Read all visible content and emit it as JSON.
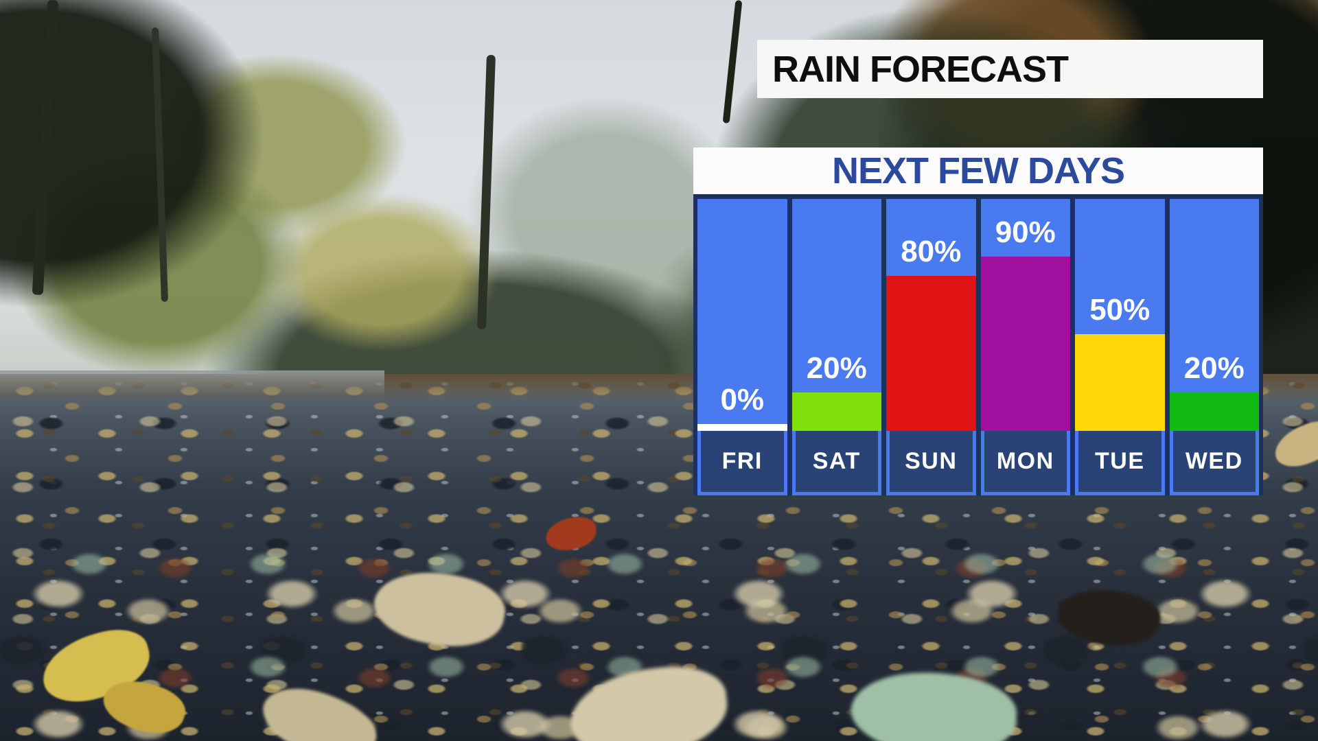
{
  "banner": {
    "title": "RAIN FORECAST"
  },
  "panel": {
    "title": "NEXT FEW DAYS"
  },
  "chart_data": {
    "type": "bar",
    "title": "NEXT FEW DAYS",
    "subtitle_context": "RAIN FORECAST",
    "categories": [
      "FRI",
      "SAT",
      "SUN",
      "MON",
      "TUE",
      "WED"
    ],
    "values": [
      0,
      20,
      80,
      90,
      50,
      20
    ],
    "value_labels": [
      "0%",
      "20%",
      "80%",
      "90%",
      "50%",
      "20%"
    ],
    "unit": "% chance of rain",
    "ylim": [
      0,
      100
    ],
    "grid": false,
    "legend": "none",
    "bar_colors": [
      "#ffffff",
      "#80e00c",
      "#e01313",
      "#a10f9f",
      "#ffd60a",
      "#11bb11"
    ]
  },
  "colors": {
    "banner_bg": "#f7f7f6",
    "banner_text": "#0e0e0e",
    "header_bg": "#fcfcfc",
    "header_text": "#2b4a9e",
    "panel_gap_navy": "#1d3160",
    "column_blue": "#4a7aef",
    "label_band_navy": "#2a4377",
    "label_border_blue": "#4a7aef",
    "percent_text": "#ffffff",
    "day_text": "#ffffff"
  }
}
